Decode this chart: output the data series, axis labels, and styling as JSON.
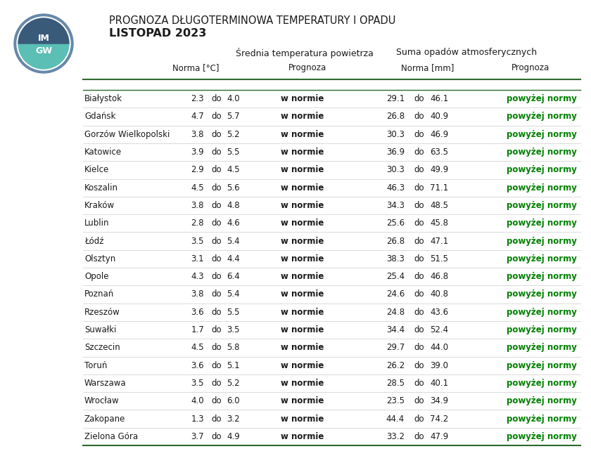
{
  "title_line1": "PROGNOZA DŁUGOTERMINOWA TEMPERATURY I OPADU",
  "title_line2": "LISTOPAD 2023",
  "header_temp": "Srednia temperatura powietrza",
  "header_precip": "Suma opadów atmosferycznych",
  "sub_norma_temp": "Norma [°C]",
  "sub_prognoza_temp": "Prognoza",
  "sub_norma_precip": "Norma [mm]",
  "sub_prognoza_precip": "Prognoza",
  "cities": [
    "Białystok",
    "Gdańsk",
    "Gorzów Wielkopolski",
    "Katowice",
    "Kielce",
    "Koszalin",
    "Kraków",
    "Lublin",
    "Łódź",
    "Olsztyn",
    "Opole",
    "Poznań",
    "Rzeszów",
    "Suwałki",
    "Szczecin",
    "Toruń",
    "Warszawa",
    "Wrocław",
    "Zakopane",
    "Zielona Góra"
  ],
  "temp_low": [
    2.3,
    4.7,
    3.8,
    3.9,
    2.9,
    4.5,
    3.8,
    2.8,
    3.5,
    3.1,
    4.3,
    3.8,
    3.6,
    1.7,
    4.5,
    3.6,
    3.5,
    4.0,
    1.3,
    3.7
  ],
  "temp_high": [
    4.0,
    5.7,
    5.2,
    5.5,
    4.5,
    5.6,
    4.8,
    4.6,
    5.4,
    4.4,
    6.4,
    5.4,
    5.5,
    3.5,
    5.8,
    5.1,
    5.2,
    6.0,
    3.2,
    4.9
  ],
  "temp_prog": [
    "w normie",
    "w normie",
    "w normie",
    "w normie",
    "w normie",
    "w normie",
    "w normie",
    "w normie",
    "w normie",
    "w normie",
    "w normie",
    "w normie",
    "w normie",
    "w normie",
    "w normie",
    "w normie",
    "w normie",
    "w normie",
    "w normie",
    "w normie"
  ],
  "prec_low": [
    29.1,
    26.8,
    30.3,
    36.9,
    30.3,
    46.3,
    34.3,
    25.6,
    26.8,
    38.3,
    25.4,
    24.6,
    24.8,
    34.4,
    29.7,
    26.2,
    28.5,
    23.5,
    44.4,
    33.2
  ],
  "prec_high": [
    46.1,
    40.9,
    46.9,
    63.5,
    49.9,
    71.1,
    48.5,
    45.8,
    47.1,
    51.5,
    46.8,
    40.8,
    43.6,
    52.4,
    44.0,
    39.0,
    40.1,
    34.9,
    74.2,
    47.9
  ],
  "prec_prog": [
    "powyżej normy",
    "powyżej normy",
    "powyżej normy",
    "powyżej normy",
    "powyżej normy",
    "powyżej normy",
    "powyżej normy",
    "powyżej normy",
    "powyżej normy",
    "powyżej normy",
    "powyżej normy",
    "powyżej normy",
    "powyżej normy",
    "powyżej normy",
    "powyżej normy",
    "powyżej normy",
    "powyżej normy",
    "powyżej normy",
    "powyżej normy",
    "powyżej normy"
  ],
  "bg_color": "#ffffff",
  "text_color": "#1a1a1a",
  "green_color": "#008000",
  "line_color_dark": "#2d6a2d",
  "line_color_light": "#cccccc",
  "logo_teal": "#5bbfb5",
  "logo_dark": "#3a5a7a",
  "fig_width": 8.4,
  "fig_height": 6.59,
  "dpi": 100
}
